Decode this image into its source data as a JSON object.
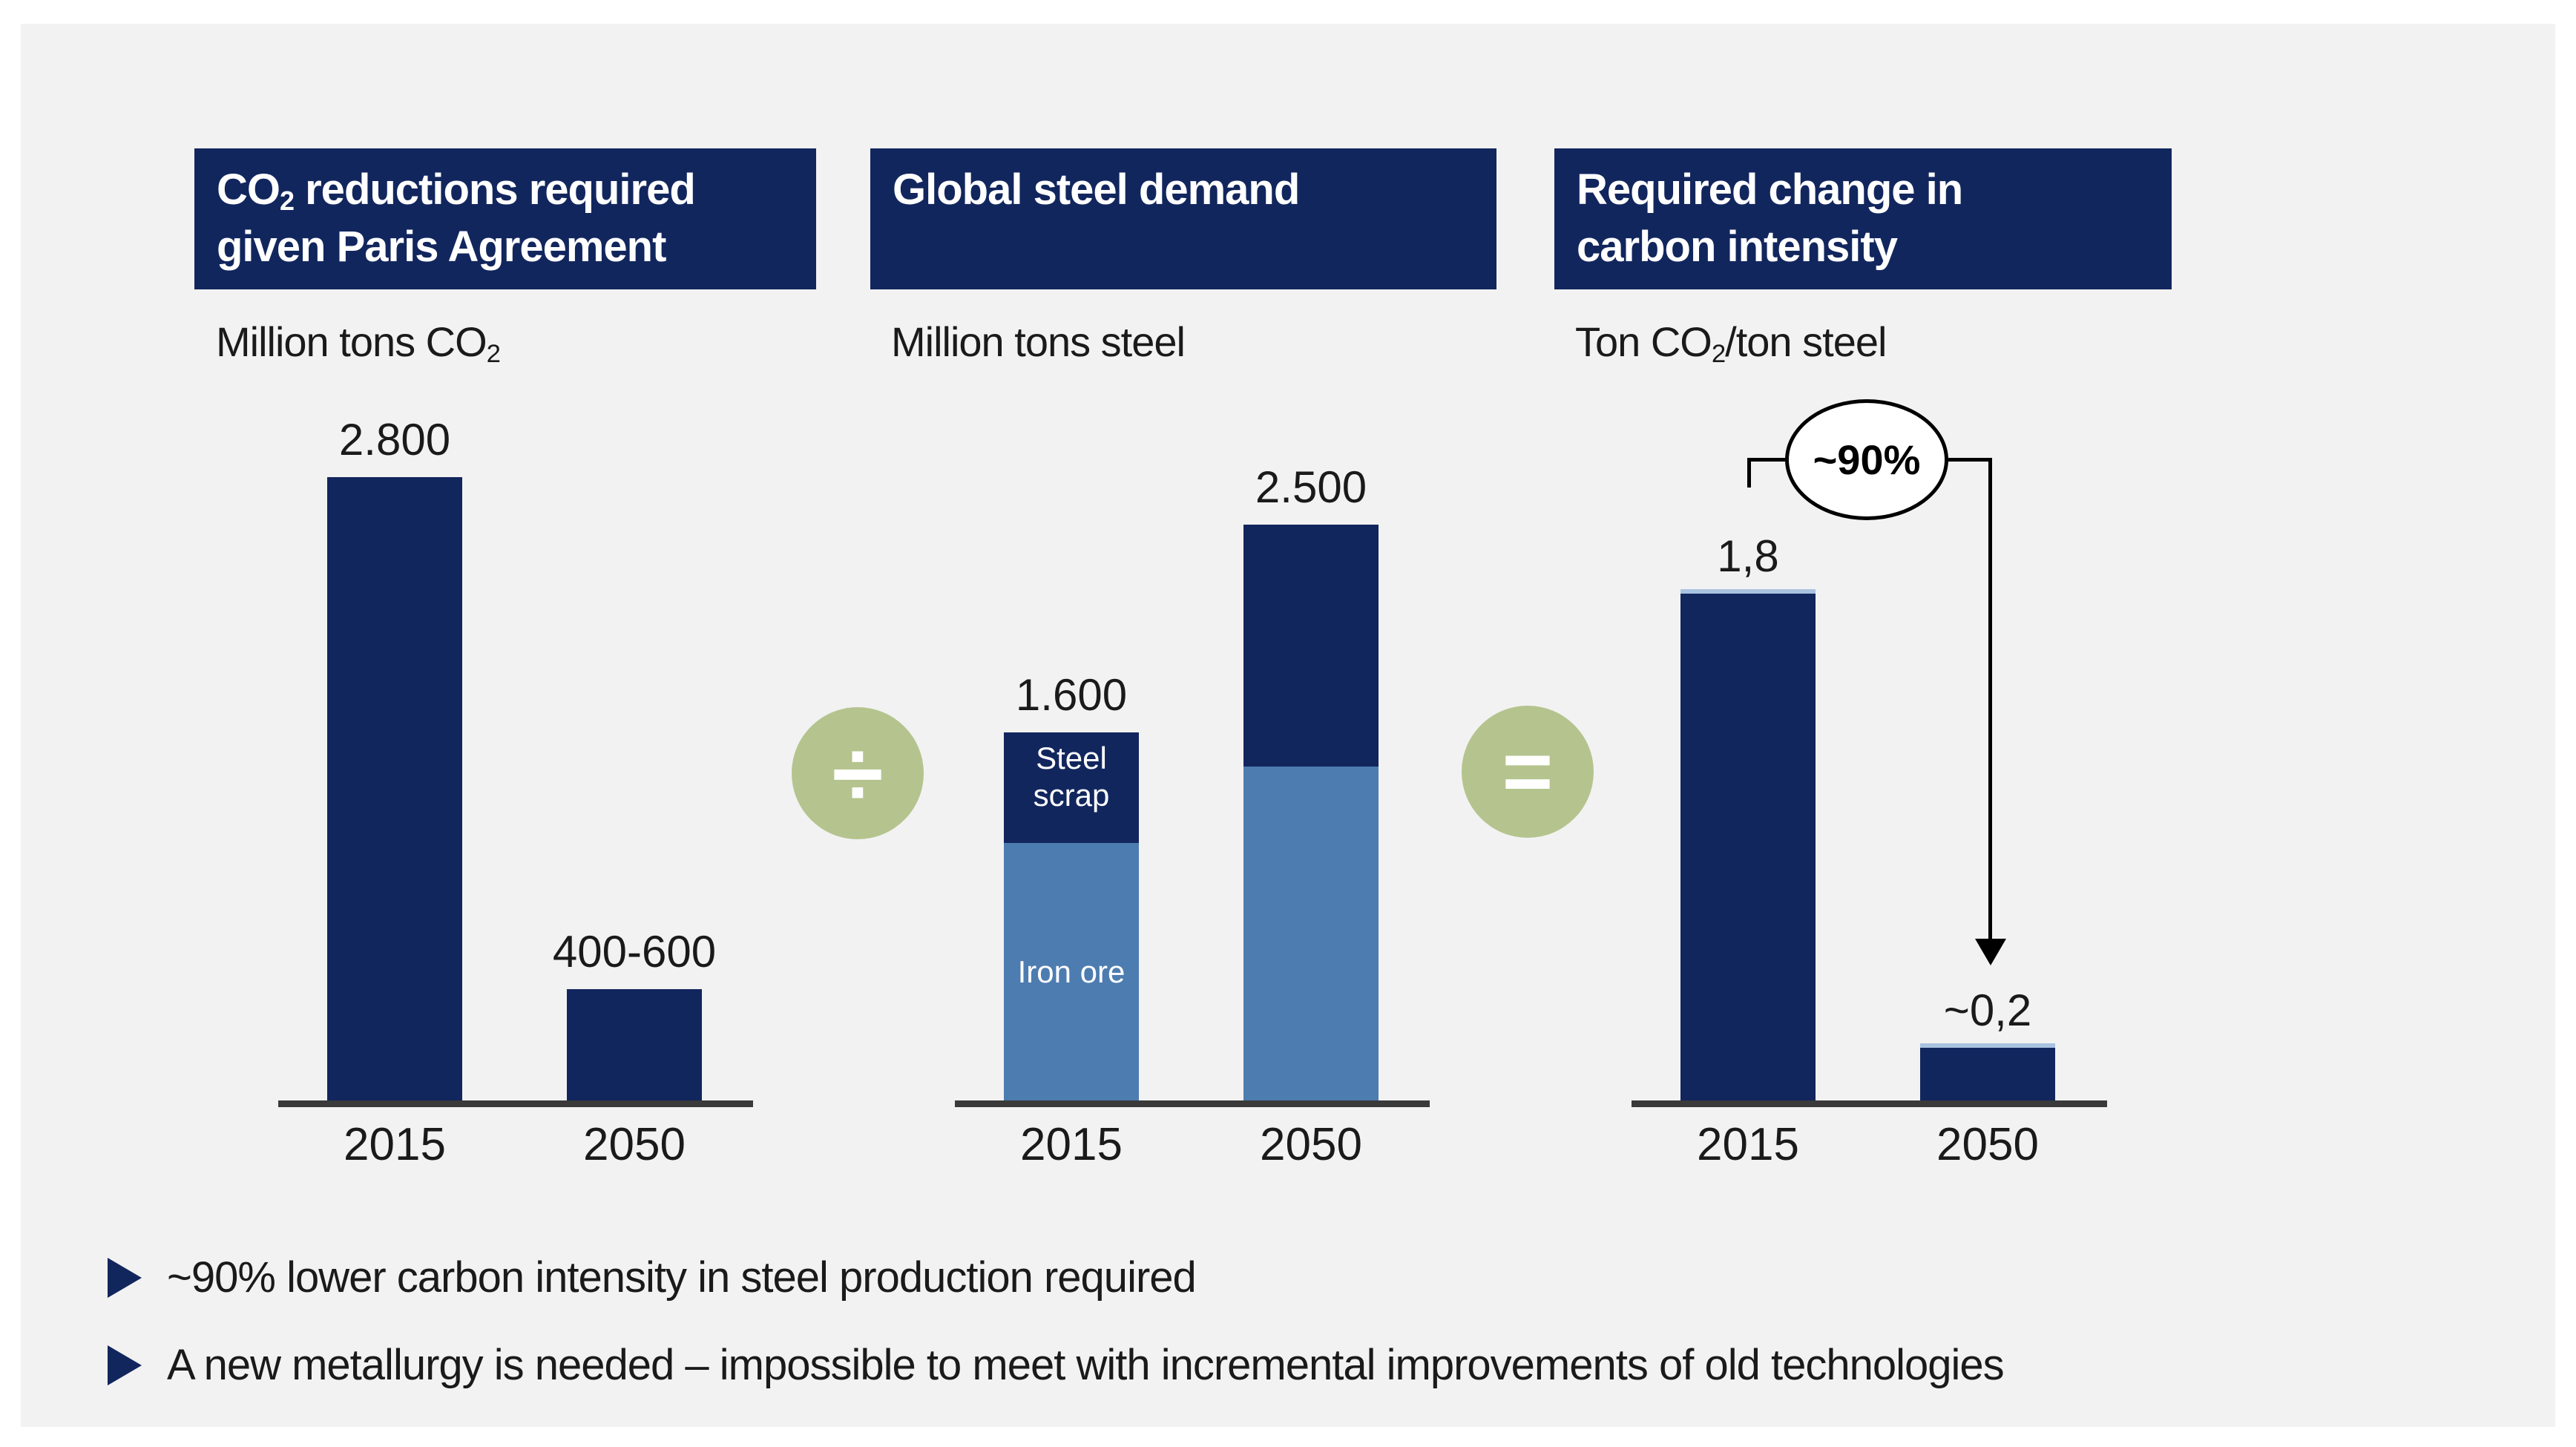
{
  "style": {
    "background": "#ffffff",
    "panel_bg": "#f2f2f2",
    "navy": "#12265e",
    "steel_blue": "#4d7cb0",
    "sage_green": "#b5c48e",
    "axis_color": "#3a3a3a",
    "text_color": "#1a1a1a",
    "bar_cap_blue": "#a9c2e0"
  },
  "slide": {
    "operators": {
      "divide": "÷",
      "equals": "="
    },
    "bullets": [
      "~90% lower carbon intensity in steel production required",
      "A new metallurgy is needed – impossible to meet with incremental improvements of old technologies"
    ]
  },
  "panels": [
    {
      "header": {
        "line1_pre": "CO",
        "line1_sub": "2",
        "line1_post": " reductions required",
        "line2": "given Paris Agreement"
      },
      "unit": {
        "pre": "Million tons CO",
        "sub": "2",
        "post": ""
      }
    },
    {
      "header": {
        "line1_pre": "Global steel demand",
        "line1_sub": "",
        "line1_post": "",
        "line2": ""
      },
      "unit": {
        "pre": "Million tons steel",
        "sub": "",
        "post": ""
      }
    },
    {
      "header": {
        "line1_pre": "Required change in",
        "line1_sub": "",
        "line1_post": "",
        "line2": "carbon intensity"
      },
      "unit": {
        "pre": "Ton CO",
        "sub": "2",
        "post": "/ton steel"
      }
    }
  ],
  "chart_data": [
    {
      "type": "bar",
      "title": "CO2 reductions required given Paris Agreement",
      "ylabel": "Million tons CO2",
      "categories": [
        "2015",
        "2050"
      ],
      "values": [
        2800,
        "400-600"
      ],
      "plot_values": [
        2800,
        500
      ],
      "value_labels": [
        "2.800",
        "400-600"
      ],
      "bar_color": "#12265e",
      "ylim": [
        0,
        3000
      ],
      "grid": false
    },
    {
      "type": "stacked-bar",
      "title": "Global steel demand",
      "ylabel": "Million tons steel",
      "categories": [
        "2015",
        "2050"
      ],
      "series": [
        {
          "name": "Steel scrap",
          "values": [
            480,
            1050
          ],
          "color": "#12265e"
        },
        {
          "name": "Iron ore",
          "values": [
            1120,
            1450
          ],
          "color": "#4d7cb0"
        }
      ],
      "totals": [
        1600,
        2500
      ],
      "total_labels": [
        "1.600",
        "2.500"
      ],
      "ylim": [
        0,
        2800
      ],
      "grid": false
    },
    {
      "type": "bar",
      "title": "Required change in carbon intensity",
      "ylabel": "Ton CO2/ton steel",
      "categories": [
        "2015",
        "2050"
      ],
      "values": [
        1.8,
        0.2
      ],
      "plot_values": [
        1.8,
        0.2
      ],
      "value_labels": [
        "1,8",
        "~0,2"
      ],
      "bar_color": "#12265e",
      "annotation": "~90%",
      "ylim": [
        0,
        2
      ],
      "grid": false
    }
  ]
}
